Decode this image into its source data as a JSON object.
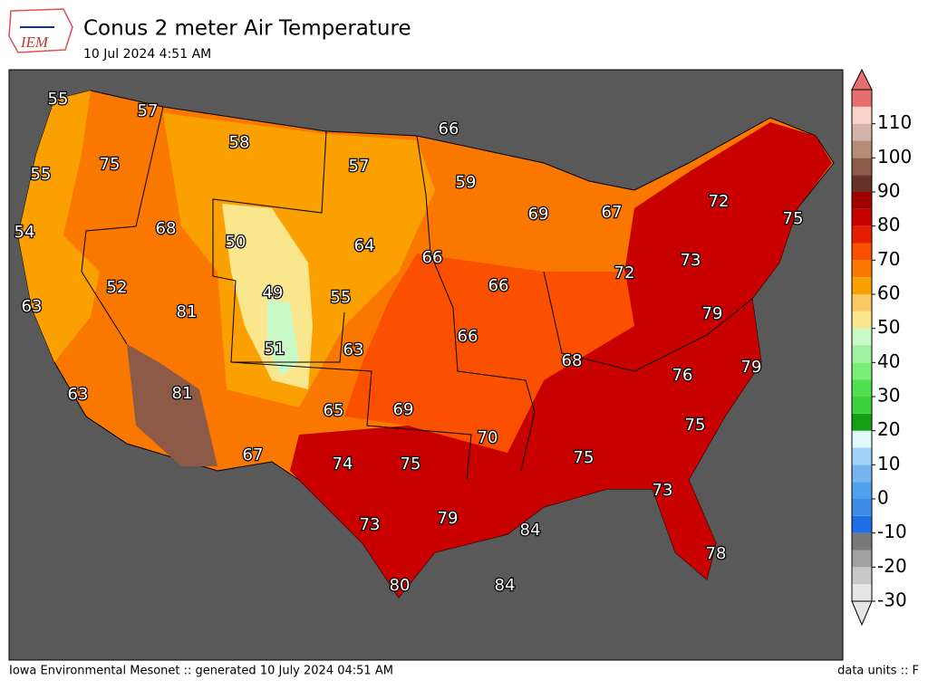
{
  "header": {
    "logo_text": "IEM",
    "title": "Conus 2 meter Air Temperature",
    "subtitle": "10 Jul 2024 4:51 AM"
  },
  "temperature_labels": [
    55,
    57,
    66,
    58,
    75,
    57,
    55,
    59,
    72,
    69,
    67,
    75,
    68,
    54,
    50,
    64,
    66,
    73,
    72,
    52,
    66,
    49,
    55,
    63,
    81,
    79,
    66,
    51,
    63,
    68,
    79,
    76,
    81,
    63,
    69,
    65,
    75,
    70,
    67,
    75,
    74,
    75,
    73,
    79,
    73,
    84,
    78,
    80,
    84
  ],
  "colorbar": {
    "lim": [
      -30,
      120
    ],
    "ticks": [
      -30,
      -20,
      -10,
      0,
      10,
      20,
      30,
      40,
      50,
      60,
      70,
      80,
      90,
      100,
      110
    ],
    "colors": [
      "#e6e6e6",
      "#c8c8c8",
      "#a0a0a0",
      "#787878",
      "#1e6ee6",
      "#3c8ce6",
      "#50a0f0",
      "#78b4f0",
      "#a0d2fa",
      "#e0fafa",
      "#14a014",
      "#3cd23c",
      "#50e050",
      "#78f078",
      "#a0f0a0",
      "#c8fac8",
      "#fae68c",
      "#fac864",
      "#faa000",
      "#fa7800",
      "#fa5000",
      "#e61e00",
      "#c80000",
      "#a00000",
      "#643228",
      "#8c5a46",
      "#b48c78",
      "#d2b4aa",
      "#fad2c8",
      "#e66e6e"
    ]
  },
  "footer": {
    "left": "Iowa Environmental Mesonet :: generated 10 July 2024 04:51 AM",
    "right": "data units :: F"
  }
}
